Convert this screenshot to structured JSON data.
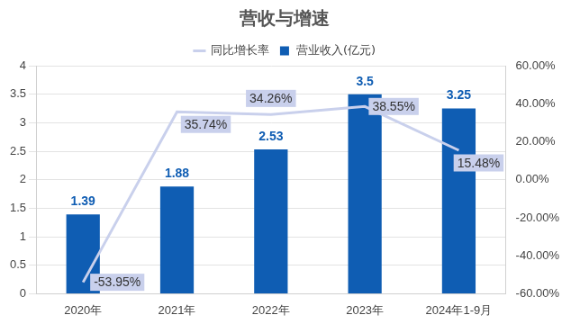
{
  "chart_data": {
    "type": "bar",
    "title": "营收与增速",
    "categories": [
      "2020年",
      "2021年",
      "2022年",
      "2023年",
      "2024年1-9月"
    ],
    "series": [
      {
        "name": "营业收入(亿元)",
        "type": "bar",
        "color": "#0f5db3",
        "values": [
          1.39,
          1.88,
          2.53,
          3.5,
          3.25
        ]
      },
      {
        "name": "同比增长率",
        "type": "line",
        "axis": "y2",
        "color": "#c9d0ec",
        "marker": "none",
        "line_style": "solid",
        "values": [
          -53.95,
          35.74,
          34.26,
          38.55,
          15.48
        ],
        "value_labels": [
          "-53.95%",
          "35.74%",
          "34.26%",
          "38.55%",
          "15.48%"
        ]
      }
    ],
    "ylim": [
      0,
      4
    ],
    "yticks": [
      0,
      0.5,
      1,
      1.5,
      2,
      2.5,
      3,
      3.5,
      4
    ],
    "y2lim": [
      -60,
      60
    ],
    "y2ticks": [
      {
        "value": -60,
        "label": "-60.00%"
      },
      {
        "value": -40,
        "label": "-40.00%"
      },
      {
        "value": -20,
        "label": "-20.00%"
      },
      {
        "value": 0,
        "label": "0.00%"
      },
      {
        "value": 20,
        "label": "20.00%"
      },
      {
        "value": 40,
        "label": "40.00%"
      },
      {
        "value": 60,
        "label": "60.00%"
      }
    ],
    "grid": true,
    "legend": "top",
    "data_labels": true
  }
}
